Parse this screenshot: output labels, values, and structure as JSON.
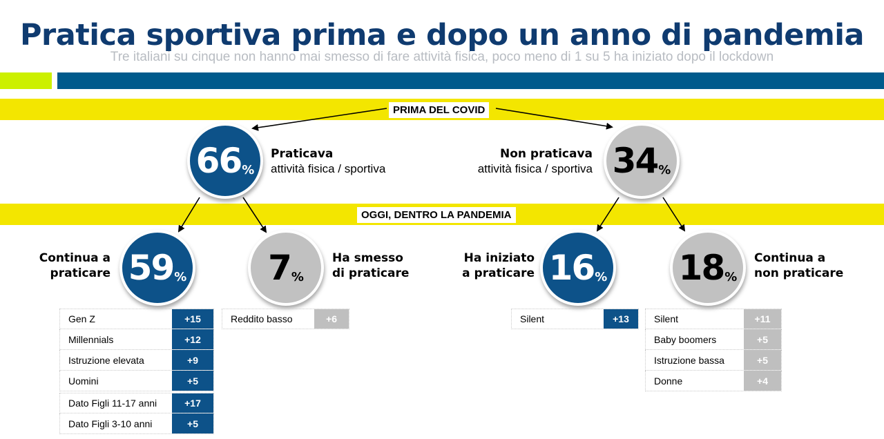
{
  "title": "Pratica sportiva prima e dopo un anno di pandemia",
  "subtitle": "Tre italiani su cinque non hanno mai smesso di fare attività fisica, poco meno di 1 su 5 ha iniziato dopo il lockdown",
  "band_prima": "PRIMA DEL COVID",
  "band_oggi": "OGGI, DENTRO LA PANDEMIA",
  "colors": {
    "blue": "#0d5289",
    "grey": "#c1c1c1",
    "yellow": "#f3e600",
    "green": "#ccf000",
    "title_blue": "#0f3b70"
  },
  "praticava": {
    "value": "66",
    "unit": "%",
    "label_bold": "Praticava",
    "label_sub": "attività fisica / sportiva"
  },
  "non_praticava": {
    "value": "34",
    "unit": "%",
    "label_bold": "Non praticava",
    "label_sub": "attività fisica / sportiva"
  },
  "continua": {
    "value": "59",
    "unit": "%",
    "label_line1": "Continua a",
    "label_line2": "praticare",
    "rows": [
      {
        "label": "Gen Z",
        "value": "+15"
      },
      {
        "label": "Millennials",
        "value": "+12"
      },
      {
        "label": "Istruzione elevata",
        "value": "+9"
      },
      {
        "label": "Uomini",
        "value": "+5"
      }
    ],
    "rows2": [
      {
        "label": "Dato Figli 11-17 anni",
        "value": "+17"
      },
      {
        "label": "Dato Figli 3-10 anni",
        "value": "+5"
      }
    ]
  },
  "smesso": {
    "value": "7",
    "unit": "%",
    "label_line1": "Ha smesso",
    "label_line2": "di praticare",
    "rows": [
      {
        "label": "Reddito basso",
        "value": "+6"
      }
    ]
  },
  "iniziato": {
    "value": "16",
    "unit": "%",
    "label_line1": "Ha iniziato",
    "label_line2": "a praticare",
    "rows": [
      {
        "label": "Silent",
        "value": "+13"
      }
    ]
  },
  "non_praticare": {
    "value": "18",
    "unit": "%",
    "label_line1": "Continua a",
    "label_line2": "non praticare",
    "rows": [
      {
        "label": "Silent",
        "value": "+11"
      },
      {
        "label": "Baby boomers",
        "value": "+5"
      },
      {
        "label": "Istruzione bassa",
        "value": "+5"
      },
      {
        "label": "Donne",
        "value": "+4"
      }
    ]
  }
}
